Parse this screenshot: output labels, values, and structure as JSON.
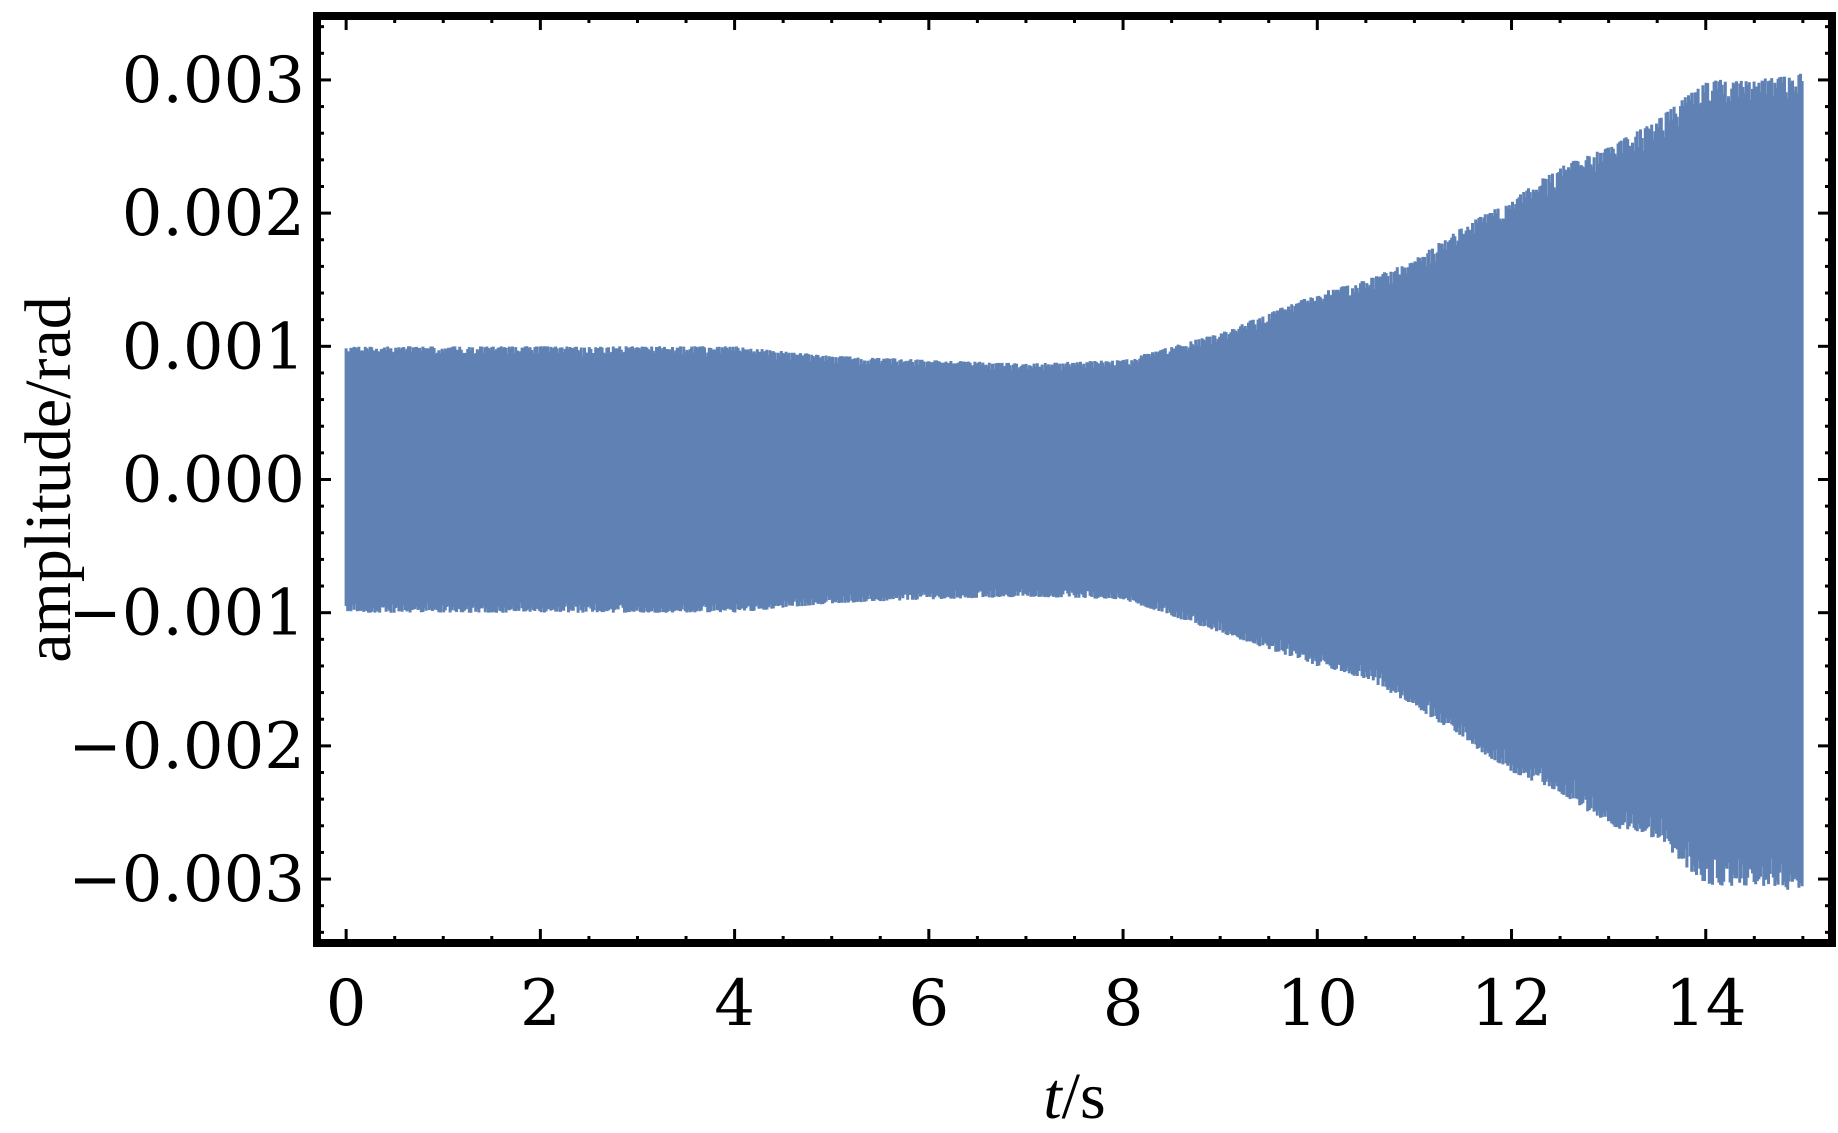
{
  "chart_data": {
    "type": "line",
    "title": "",
    "xlabel_italic": "t",
    "xlabel_unit": "/s",
    "ylabel": "amplitude/rad",
    "xlim": [
      -0.3,
      15.3
    ],
    "ylim": [
      -0.00348,
      0.00348
    ],
    "x_ticks": [
      0,
      2,
      4,
      6,
      8,
      10,
      12,
      14
    ],
    "x_tick_labels": [
      "0",
      "2",
      "4",
      "6",
      "8",
      "10",
      "12",
      "14"
    ],
    "y_ticks": [
      0.003,
      0.002,
      0.001,
      0.0,
      -0.001,
      -0.002,
      -0.003
    ],
    "y_tick_labels": [
      "0.003",
      "0.002",
      "0.001",
      "0.000",
      "−0.001",
      "−0.002",
      "−0.003"
    ],
    "series": [
      {
        "color": "#5f81b4",
        "description_of_shape": "rapid oscillation",
        "x": [
          0,
          1,
          2,
          3,
          4,
          5,
          6,
          7,
          8,
          9,
          10,
          10.5,
          11,
          11.5,
          12,
          12.5,
          13,
          13.5,
          14,
          14.5,
          15
        ],
        "upper": [
          0.001,
          0.001,
          0.001,
          0.001,
          0.001,
          0.00093,
          0.0009,
          0.00087,
          0.0009,
          0.0011,
          0.0014,
          0.0015,
          0.00165,
          0.0019,
          0.0021,
          0.00235,
          0.0025,
          0.0027,
          0.003,
          0.003,
          0.00305
        ],
        "lower": [
          -0.001,
          -0.001,
          -0.001,
          -0.001,
          -0.001,
          -0.00093,
          -0.0009,
          -0.00088,
          -0.0009,
          -0.00115,
          -0.0014,
          -0.0015,
          -0.0017,
          -0.00195,
          -0.0022,
          -0.00235,
          -0.0026,
          -0.0027,
          -0.00305,
          -0.00305,
          -0.0031
        ]
      }
    ]
  }
}
